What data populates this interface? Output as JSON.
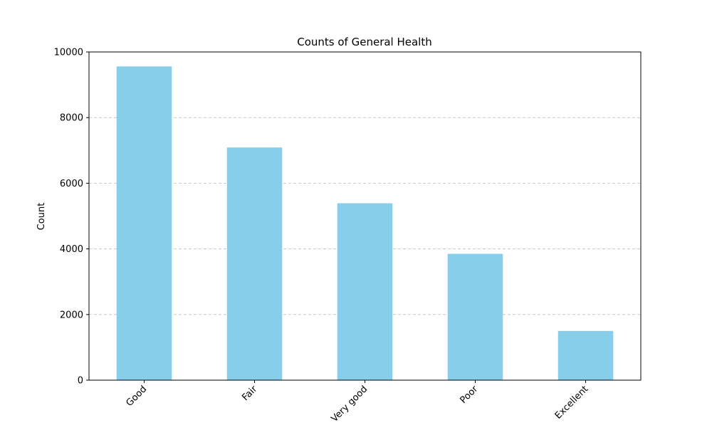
{
  "chart_data": {
    "type": "bar",
    "title": "Counts of General Health",
    "xlabel": "",
    "ylabel": "Count",
    "categories": [
      "Good",
      "Fair",
      "Very good",
      "Poor",
      "Excellent"
    ],
    "values": [
      9560,
      7090,
      5390,
      3850,
      1500
    ],
    "ylim": [
      0,
      10000
    ],
    "yticks": [
      0,
      2000,
      4000,
      6000,
      8000,
      10000
    ],
    "grid": "y-dashed",
    "bar_color": "#87CEEB",
    "x_tick_rotation": 45
  }
}
